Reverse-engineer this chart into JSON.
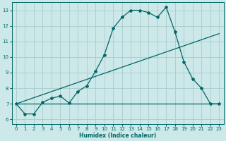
{
  "xlabel": "Humidex (Indice chaleur)",
  "bg_color": "#cce8e8",
  "grid_color": "#aacccc",
  "line_color": "#006666",
  "xlim": [
    -0.5,
    23.5
  ],
  "ylim": [
    5.7,
    13.5
  ],
  "yticks": [
    6,
    7,
    8,
    9,
    10,
    11,
    12,
    13
  ],
  "xticks": [
    0,
    1,
    2,
    3,
    4,
    5,
    6,
    7,
    8,
    9,
    10,
    11,
    12,
    13,
    14,
    15,
    16,
    17,
    18,
    19,
    20,
    21,
    22,
    23
  ],
  "curve1_x": [
    0,
    1,
    2,
    3,
    4,
    5,
    6,
    7,
    8,
    9,
    10,
    11,
    12,
    13,
    14,
    15,
    16,
    17,
    18,
    19,
    20,
    21,
    22,
    23
  ],
  "curve1_y": [
    7.0,
    6.35,
    6.35,
    7.1,
    7.35,
    7.5,
    7.05,
    7.8,
    8.15,
    9.1,
    10.15,
    11.85,
    12.55,
    13.0,
    13.0,
    12.85,
    12.55,
    13.2,
    11.6,
    9.7,
    8.6,
    8.0,
    7.0,
    7.0
  ],
  "curve2_x": [
    0,
    23
  ],
  "curve2_y": [
    7.0,
    11.5
  ],
  "curve3_x": [
    0,
    23
  ],
  "curve3_y": [
    7.0,
    7.0
  ]
}
